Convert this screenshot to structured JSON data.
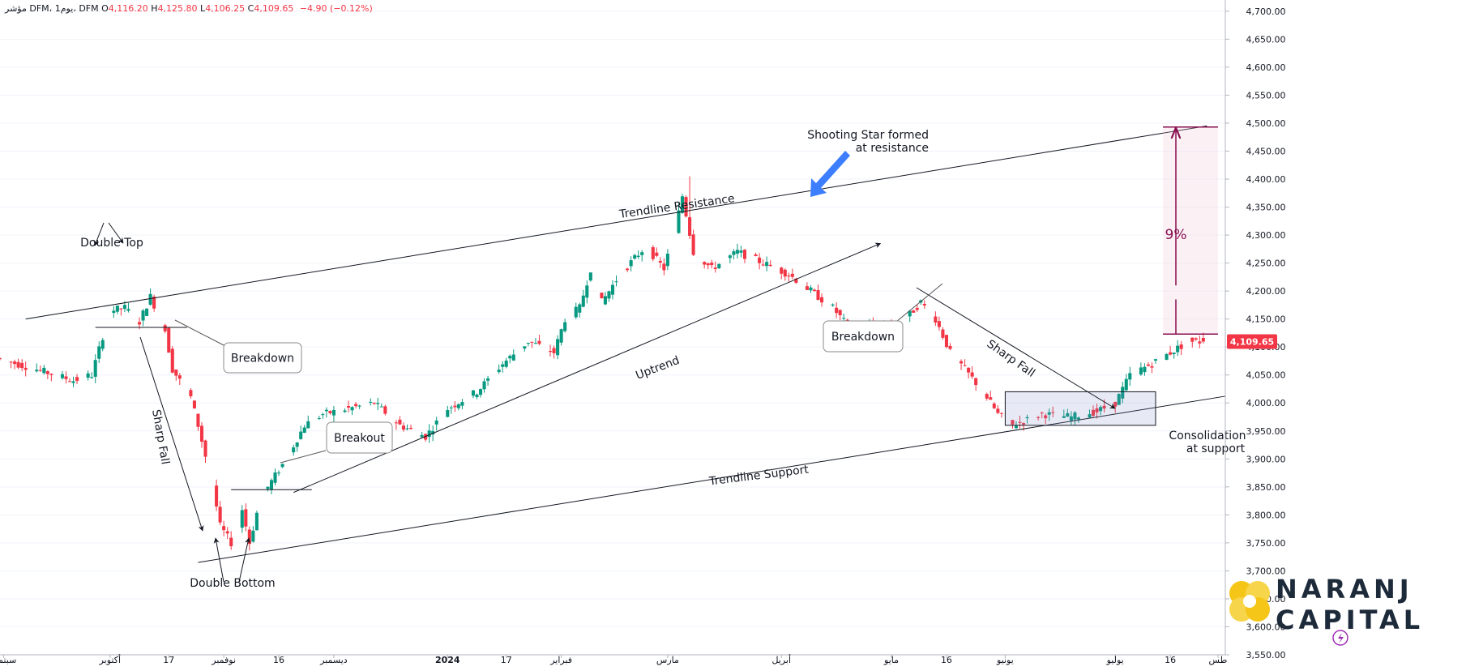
{
  "header": {
    "symbol_label": "مؤشر DFM، 1يوم، DFM",
    "open_key": "O",
    "open": "4,116.20",
    "high_key": "H",
    "high": "4,125.80",
    "low_key": "L",
    "low": "4,106.25",
    "close_key": "C",
    "close": "4,109.65",
    "change": "−4.90 (−0.12%)"
  },
  "price_axis": {
    "ticks": [
      "4,700.00",
      "4,650.00",
      "4,600.00",
      "4,550.00",
      "4,500.00",
      "4,450.00",
      "4,400.00",
      "4,350.00",
      "4,300.00",
      "4,250.00",
      "4,200.00",
      "4,150.00",
      "4,100.00",
      "4,050.00",
      "4,000.00",
      "3,950.00",
      "3,900.00",
      "3,850.00",
      "3,800.00",
      "3,750.00",
      "3,700.00",
      "3,650.00",
      "3,600.00",
      "3,550.00"
    ],
    "current_price_label": "4,109.65"
  },
  "time_axis": {
    "labels": [
      "سبتمبر",
      "أكتوبر",
      "17",
      "نوفمبر",
      "16",
      "ديسمبر",
      "2024",
      "17",
      "فبراير",
      "مارس",
      "أبريل",
      "مايو",
      "16",
      "يونيو",
      "يوليو",
      "16",
      "طس"
    ]
  },
  "annotations": {
    "double_top": "Double Top",
    "double_bottom": "Double Bottom",
    "breakdown_1": "Breakdown",
    "breakdown_2": "Breakdown",
    "breakout": "Breakout",
    "sharp_fall_1": "Sharp Fall",
    "sharp_fall_2": "Sharp Fall",
    "uptrend": "Uptrend",
    "trendline_resistance": "Trendline Resistance",
    "trendline_support": "Trendline Support",
    "shooting_star_line1": "Shooting Star formed",
    "shooting_star_line2": "at resistance",
    "consolidation_line1": "Consolidation",
    "consolidation_line2": "at support",
    "target_percent": "9%"
  },
  "logo": {
    "line1": "NARANJ",
    "line2": "CAPITAL"
  },
  "colors": {
    "up": "#089981",
    "down": "#f23645",
    "annotation": "#131722",
    "target": "#880e4f",
    "shooting_arrow": "#3d7eff",
    "price_tag": "#f23645",
    "logo_yellow": "#f5c518",
    "logo_text": "#1d2a3a",
    "grid": "#f0f3fa"
  },
  "chart_data": {
    "type": "candlestick",
    "symbol": "DFM",
    "interval": "1D",
    "ylim": [
      3550,
      4720
    ],
    "x_start": "2023-09-01",
    "x_end": "2024-07-31",
    "last_candle": {
      "open": 4116.2,
      "high": 4125.8,
      "low": 4106.25,
      "close": 4109.65,
      "change": -4.9,
      "change_pct": -0.12
    },
    "path": [
      [
        "2023-09-01",
        4080
      ],
      [
        "2023-09-12",
        4060
      ],
      [
        "2023-09-22",
        4040
      ],
      [
        "2023-09-27",
        4050
      ],
      [
        "2023-10-02",
        4165
      ],
      [
        "2023-10-06",
        4170
      ],
      [
        "2023-10-10",
        4145
      ],
      [
        "2023-10-13",
        4190
      ],
      [
        "2023-10-17",
        4130
      ],
      [
        "2023-10-19",
        4060
      ],
      [
        "2023-10-24",
        4010
      ],
      [
        "2023-10-26",
        3960
      ],
      [
        "2023-10-30",
        3850
      ],
      [
        "2023-11-01",
        3780
      ],
      [
        "2023-11-05",
        3740
      ],
      [
        "2023-11-07",
        3810
      ],
      [
        "2023-11-09",
        3750
      ],
      [
        "2023-11-12",
        3830
      ],
      [
        "2023-11-15",
        3860
      ],
      [
        "2023-11-19",
        3900
      ],
      [
        "2023-11-24",
        3960
      ],
      [
        "2023-11-29",
        3980
      ],
      [
        "2023-12-06",
        3990
      ],
      [
        "2023-12-13",
        4000
      ],
      [
        "2023-12-20",
        3960
      ],
      [
        "2023-12-27",
        3940
      ],
      [
        "2024-01-02",
        3990
      ],
      [
        "2024-01-10",
        4020
      ],
      [
        "2024-01-17",
        4070
      ],
      [
        "2024-01-24",
        4110
      ],
      [
        "2024-01-31",
        4090
      ],
      [
        "2024-02-03",
        4150
      ],
      [
        "2024-02-07",
        4170
      ],
      [
        "2024-02-10",
        4240
      ],
      [
        "2024-02-13",
        4180
      ],
      [
        "2024-02-18",
        4230
      ],
      [
        "2024-02-25",
        4280
      ],
      [
        "2024-03-01",
        4240
      ],
      [
        "2024-03-04",
        4310
      ],
      [
        "2024-03-06",
        4370
      ],
      [
        "2024-03-09",
        4270
      ],
      [
        "2024-03-14",
        4240
      ],
      [
        "2024-03-21",
        4270
      ],
      [
        "2024-03-28",
        4250
      ],
      [
        "2024-04-04",
        4230
      ],
      [
        "2024-04-10",
        4200
      ],
      [
        "2024-04-16",
        4170
      ],
      [
        "2024-04-21",
        4130
      ],
      [
        "2024-04-27",
        4140
      ],
      [
        "2024-05-03",
        4130
      ],
      [
        "2024-05-10",
        4180
      ],
      [
        "2024-05-14",
        4150
      ],
      [
        "2024-05-18",
        4090
      ],
      [
        "2024-05-22",
        4060
      ],
      [
        "2024-05-27",
        4020
      ],
      [
        "2024-05-31",
        3980
      ],
      [
        "2024-06-04",
        3960
      ],
      [
        "2024-06-12",
        3980
      ],
      [
        "2024-06-20",
        3975
      ],
      [
        "2024-06-27",
        3985
      ],
      [
        "2024-07-02",
        4000
      ],
      [
        "2024-07-06",
        4050
      ],
      [
        "2024-07-12",
        4070
      ],
      [
        "2024-07-17",
        4090
      ],
      [
        "2024-07-22",
        4110
      ],
      [
        "2024-07-25",
        4109.65
      ]
    ],
    "trendlines": {
      "resistance": [
        [
          "2023-09-08",
          4150
        ],
        [
          "2024-07-26",
          4495
        ]
      ],
      "support": [
        [
          "2023-10-25",
          3715
        ],
        [
          "2024-07-31",
          4012
        ]
      ],
      "uptrend": [
        [
          "2023-11-20",
          3840
        ],
        [
          "2024-04-28",
          4285
        ]
      ],
      "double_top_neckline": [
        [
          "2023-09-27",
          4135
        ],
        [
          "2023-10-22",
          4135
        ]
      ],
      "breakout_level": [
        [
          "2023-11-03",
          3845
        ],
        [
          "2023-11-25",
          3845
        ]
      ]
    },
    "consolidation_box": {
      "x": [
        "2024-06-01",
        "2024-07-12"
      ],
      "y": [
        3960,
        4020
      ]
    },
    "target_projection": {
      "x": [
        "2024-07-14",
        "2024-07-29"
      ],
      "from": 4123,
      "to": 4493,
      "percent": "9%"
    }
  }
}
